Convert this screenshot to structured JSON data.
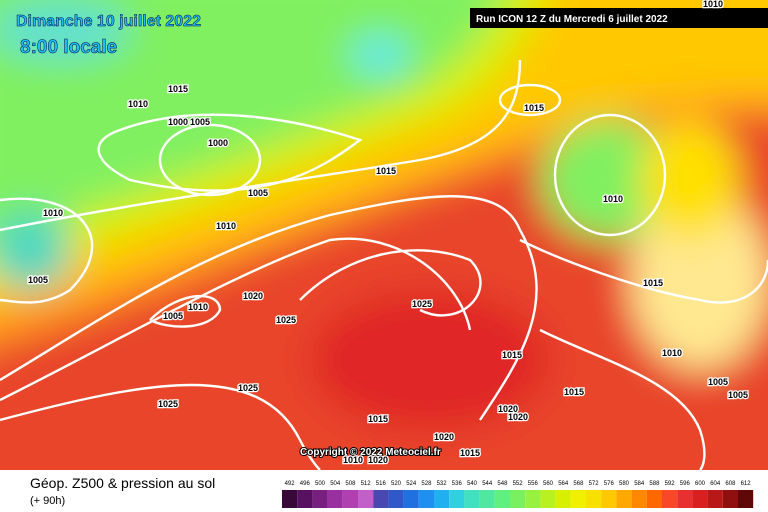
{
  "header": {
    "title": "Dimanche 10 juillet 2022",
    "time": "8:00 locale",
    "run": "Run ICON 12 Z du Mercredi 6 juillet 2022"
  },
  "isobar_labels": [
    "1010",
    "1015",
    "1010",
    "1000",
    "1005",
    "1000",
    "1005",
    "1010",
    "1010",
    "1005",
    "1015",
    "1015",
    "1010",
    "1015",
    "1020",
    "1025",
    "1010",
    "1005",
    "1025",
    "1015",
    "1010",
    "1005",
    "1005",
    "1015",
    "1025",
    "1025",
    "1015",
    "1020",
    "1020",
    "1020",
    "1015",
    "1010",
    "1020"
  ],
  "copyright": "Copyright © 2022 Meteociel.fr",
  "legend": {
    "title": "Géop. Z500 & pression au sol",
    "subtitle": "(+ 90h)",
    "values": [
      492,
      496,
      500,
      504,
      508,
      512,
      516,
      520,
      524,
      528,
      532,
      536,
      540,
      544,
      548,
      552,
      556,
      560,
      564,
      568,
      572,
      576,
      580,
      584,
      588,
      592,
      596,
      600,
      604,
      608,
      612
    ],
    "colors": [
      "#380838",
      "#581060",
      "#782080",
      "#9830a0",
      "#b040b0",
      "#c060c8",
      "#4848b0",
      "#3058c8",
      "#2070e0",
      "#2090f0",
      "#20b0f0",
      "#30d0e0",
      "#40e0c0",
      "#50e8a0",
      "#60f080",
      "#78f060",
      "#98f040",
      "#b8f020",
      "#d8f000",
      "#f0f000",
      "#f8e000",
      "#ffc800",
      "#ffa800",
      "#ff8800",
      "#ff6800",
      "#f84828",
      "#e83030",
      "#d82020",
      "#b81818",
      "#901010",
      "#600808"
    ]
  }
}
